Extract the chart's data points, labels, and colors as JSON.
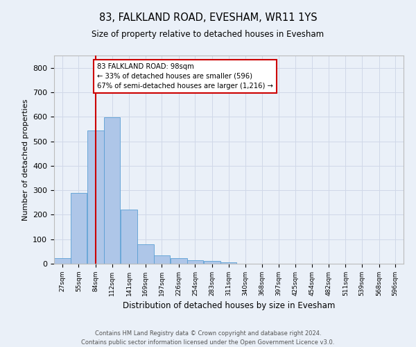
{
  "title1": "83, FALKLAND ROAD, EVESHAM, WR11 1YS",
  "title2": "Size of property relative to detached houses in Evesham",
  "xlabel": "Distribution of detached houses by size in Evesham",
  "ylabel": "Number of detached properties",
  "bin_edges": [
    27,
    55,
    84,
    112,
    141,
    169,
    197,
    226,
    254,
    283,
    311,
    340,
    368,
    397,
    425,
    454,
    482,
    511,
    539,
    568,
    596
  ],
  "bar_heights": [
    22,
    290,
    545,
    597,
    222,
    80,
    33,
    23,
    13,
    10,
    7,
    0,
    0,
    0,
    0,
    0,
    0,
    0,
    0,
    0
  ],
  "bar_color": "#aec6e8",
  "bar_edge_color": "#5a9fd4",
  "grid_color": "#d0d8e8",
  "background_color": "#eaf0f8",
  "property_line_x": 98,
  "property_line_color": "#cc0000",
  "annotation_line1": "83 FALKLAND ROAD: 98sqm",
  "annotation_line2": "← 33% of detached houses are smaller (596)",
  "annotation_line3": "67% of semi-detached houses are larger (1,216) →",
  "annotation_box_color": "#ffffff",
  "annotation_box_edge_color": "#cc0000",
  "ylim": [
    0,
    850
  ],
  "yticks": [
    0,
    100,
    200,
    300,
    400,
    500,
    600,
    700,
    800
  ],
  "footer_text": "Contains HM Land Registry data © Crown copyright and database right 2024.\nContains public sector information licensed under the Open Government Licence v3.0.",
  "tick_labels": [
    "27sqm",
    "55sqm",
    "84sqm",
    "112sqm",
    "141sqm",
    "169sqm",
    "197sqm",
    "226sqm",
    "254sqm",
    "283sqm",
    "311sqm",
    "340sqm",
    "368sqm",
    "397sqm",
    "425sqm",
    "454sqm",
    "482sqm",
    "511sqm",
    "539sqm",
    "568sqm",
    "596sqm"
  ]
}
